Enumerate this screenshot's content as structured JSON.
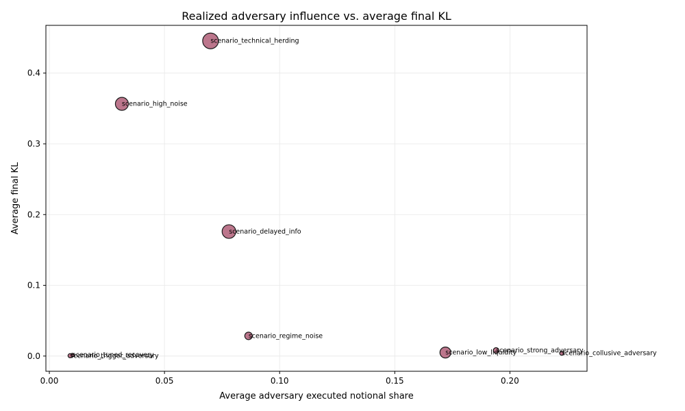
{
  "chart_data": {
    "type": "scatter",
    "title": "Realized adversary influence vs. average final KL",
    "xlabel": "Average adversary executed notional share",
    "ylabel": "Average final KL",
    "xlim": [
      -0.0015,
      0.2335
    ],
    "ylim": [
      -0.0215,
      0.4675
    ],
    "xticks": [
      0.0,
      0.05,
      0.1,
      0.15,
      0.2
    ],
    "xtick_labels": [
      "0.00",
      "0.05",
      "0.10",
      "0.15",
      "0.20"
    ],
    "yticks": [
      0.0,
      0.1,
      0.2,
      0.3,
      0.4
    ],
    "ytick_labels": [
      "0.0",
      "0.1",
      "0.2",
      "0.3",
      "0.4"
    ],
    "grid": true,
    "marker_color": "#b5677f",
    "points": [
      {
        "label": "scenario_technical_herding",
        "x": 0.07,
        "y": 0.4455,
        "size": 11.5
      },
      {
        "label": "scenario_high_noise",
        "x": 0.0315,
        "y": 0.3565,
        "size": 9.5
      },
      {
        "label": "scenario_delayed_info",
        "x": 0.078,
        "y": 0.176,
        "size": 10.0
      },
      {
        "label": "scenario_regime_noise",
        "x": 0.0865,
        "y": 0.0285,
        "size": 5.5
      },
      {
        "label": "scenario_low_liquidity",
        "x": 0.172,
        "y": 0.005,
        "size": 8.0
      },
      {
        "label": "scenario_strong_adversary",
        "x": 0.194,
        "y": 0.008,
        "size": 4.0
      },
      {
        "label": "scenario_collusive_adversary",
        "x": 0.2225,
        "y": 0.004,
        "size": 3.0
      },
      {
        "label": "scenario_tuned_recovery",
        "x": 0.01,
        "y": 0.0015,
        "size": 2.5
      },
      {
        "label": "scenario_trigger_adversary",
        "x": 0.009,
        "y": 0.0005,
        "size": 3.0
      }
    ]
  }
}
